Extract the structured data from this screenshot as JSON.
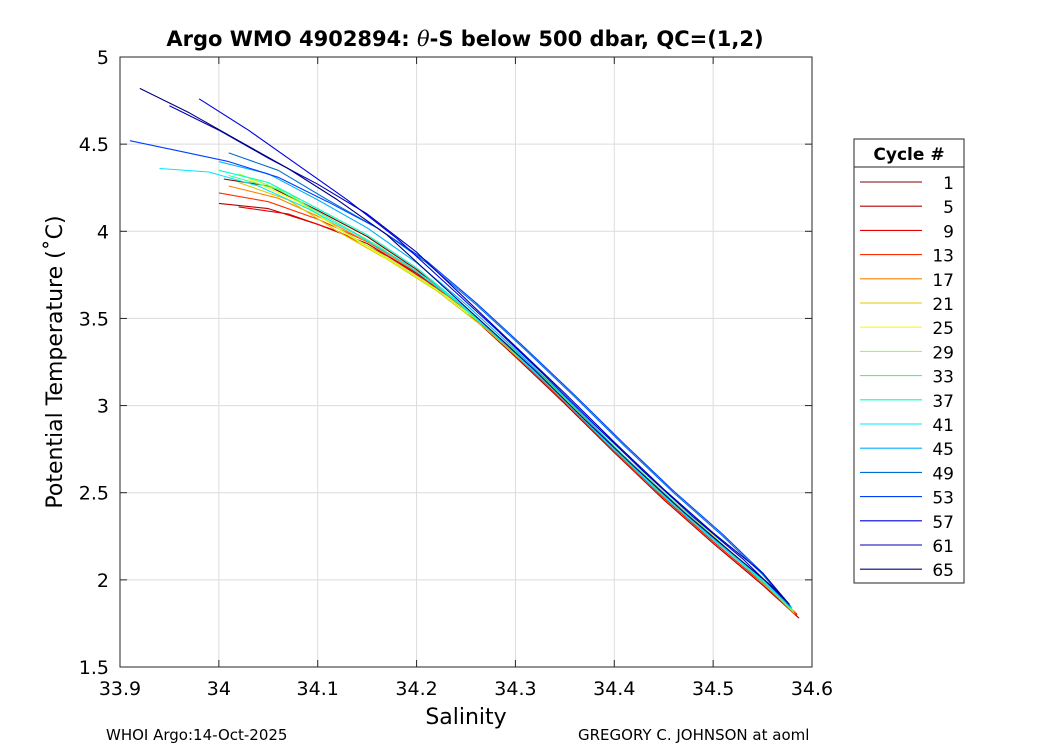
{
  "chart_data": {
    "type": "line",
    "title_prefix": "Argo WMO 4902894: ",
    "title_theta": "θ",
    "title_suffix": "-S below 500 dbar,  QC=(1,2)",
    "xlabel": "Salinity",
    "ylabel": "Potential Temperature (˚C)",
    "xlim": [
      33.9,
      34.6
    ],
    "ylim": [
      1.5,
      5
    ],
    "xticks": [
      33.9,
      34.0,
      34.1,
      34.2,
      34.3,
      34.4,
      34.5,
      34.6
    ],
    "xtick_labels": [
      "33.9",
      "34",
      "34.1",
      "34.2",
      "34.3",
      "34.4",
      "34.5",
      "34.6"
    ],
    "yticks": [
      1.5,
      2,
      2.5,
      3,
      3.5,
      4,
      4.5,
      5
    ],
    "ytick_labels": [
      "1.5",
      "2",
      "2.5",
      "3",
      "3.5",
      "4",
      "4.5",
      "5"
    ],
    "grid": true,
    "legend_title": "Cycle #",
    "legend_position": "outside-right",
    "legend": [
      {
        "label": "1",
        "color": "#800000"
      },
      {
        "label": "5",
        "color": "#b40000"
      },
      {
        "label": "9",
        "color": "#e80000"
      },
      {
        "label": "13",
        "color": "#ff3000"
      },
      {
        "label": "17",
        "color": "#ff8000"
      },
      {
        "label": "21",
        "color": "#e0c800"
      },
      {
        "label": "25",
        "color": "#ffff00"
      },
      {
        "label": "29",
        "color": "#a0ff40"
      },
      {
        "label": "33",
        "color": "#40ff80"
      },
      {
        "label": "37",
        "color": "#00ffc0"
      },
      {
        "label": "41",
        "color": "#00e8ff"
      },
      {
        "label": "45",
        "color": "#00b0ff"
      },
      {
        "label": "49",
        "color": "#0070d0"
      },
      {
        "label": "53",
        "color": "#0040ff"
      },
      {
        "label": "57",
        "color": "#0000e0"
      },
      {
        "label": "61",
        "color": "#0000b0"
      },
      {
        "label": "65",
        "color": "#000080"
      }
    ],
    "series": [
      {
        "name": "1",
        "x": [
          34.005,
          34.05,
          34.1,
          34.15,
          34.2,
          34.25,
          34.3,
          34.35,
          34.4,
          34.45,
          34.5,
          34.55,
          34.585
        ],
        "y": [
          4.3,
          4.26,
          4.12,
          3.97,
          3.78,
          3.55,
          3.29,
          3.02,
          2.74,
          2.47,
          2.22,
          1.98,
          1.79
        ]
      },
      {
        "name": "5",
        "x": [
          34.0,
          34.05,
          34.1,
          34.15,
          34.2,
          34.25,
          34.3,
          34.35,
          34.4,
          34.45,
          34.5,
          34.55,
          34.587
        ],
        "y": [
          4.16,
          4.13,
          4.04,
          3.93,
          3.76,
          3.54,
          3.28,
          3.01,
          2.73,
          2.46,
          2.21,
          1.97,
          1.78
        ]
      },
      {
        "name": "9",
        "x": [
          34.02,
          34.07,
          34.12,
          34.17,
          34.22,
          34.27,
          34.32,
          34.37,
          34.42,
          34.47,
          34.52,
          34.56,
          34.585
        ],
        "y": [
          4.14,
          4.1,
          4.0,
          3.86,
          3.68,
          3.45,
          3.2,
          2.93,
          2.65,
          2.39,
          2.14,
          1.94,
          1.8
        ]
      },
      {
        "name": "13",
        "x": [
          34.0,
          34.05,
          34.1,
          34.15,
          34.2,
          34.25,
          34.3,
          34.35,
          34.4,
          34.45,
          34.5,
          34.55,
          34.583
        ],
        "y": [
          4.22,
          4.17,
          4.07,
          3.94,
          3.77,
          3.55,
          3.29,
          3.02,
          2.74,
          2.47,
          2.22,
          1.98,
          1.8
        ]
      },
      {
        "name": "17",
        "x": [
          34.01,
          34.06,
          34.11,
          34.16,
          34.21,
          34.26,
          34.31,
          34.36,
          34.41,
          34.46,
          34.51,
          34.55,
          34.584
        ],
        "y": [
          4.26,
          4.19,
          4.06,
          3.91,
          3.73,
          3.51,
          3.26,
          2.99,
          2.71,
          2.45,
          2.2,
          1.98,
          1.81
        ]
      },
      {
        "name": "21",
        "x": [
          34.02,
          34.07,
          34.12,
          34.17,
          34.22,
          34.27,
          34.32,
          34.37,
          34.42,
          34.47,
          34.52,
          34.56,
          34.582
        ],
        "y": [
          4.28,
          4.18,
          4.0,
          3.84,
          3.66,
          3.44,
          3.19,
          2.92,
          2.64,
          2.38,
          2.14,
          1.94,
          1.81
        ]
      },
      {
        "name": "25",
        "x": [
          34.03,
          34.08,
          34.13,
          34.18,
          34.23,
          34.28,
          34.33,
          34.38,
          34.43,
          34.48,
          34.52,
          34.56,
          34.581
        ],
        "y": [
          4.3,
          4.17,
          3.98,
          3.81,
          3.63,
          3.41,
          3.16,
          2.89,
          2.62,
          2.36,
          2.15,
          1.95,
          1.82
        ]
      },
      {
        "name": "29",
        "x": [
          34.02,
          34.07,
          34.12,
          34.17,
          34.22,
          34.27,
          34.32,
          34.37,
          34.42,
          34.47,
          34.52,
          34.56,
          34.581
        ],
        "y": [
          4.33,
          4.22,
          4.02,
          3.85,
          3.67,
          3.45,
          3.2,
          2.93,
          2.65,
          2.39,
          2.15,
          1.95,
          1.82
        ]
      },
      {
        "name": "33",
        "x": [
          34.01,
          34.06,
          34.11,
          34.16,
          34.21,
          34.26,
          34.31,
          34.36,
          34.41,
          34.46,
          34.51,
          34.55,
          34.58
        ],
        "y": [
          4.32,
          4.24,
          4.08,
          3.92,
          3.73,
          3.51,
          3.26,
          2.99,
          2.71,
          2.45,
          2.2,
          1.99,
          1.82
        ]
      },
      {
        "name": "37",
        "x": [
          34.0,
          34.05,
          34.1,
          34.15,
          34.2,
          34.25,
          34.3,
          34.35,
          34.4,
          34.45,
          34.5,
          34.55,
          34.58
        ],
        "y": [
          4.35,
          4.28,
          4.13,
          3.98,
          3.79,
          3.56,
          3.3,
          3.03,
          2.75,
          2.48,
          2.23,
          2.0,
          1.83
        ]
      },
      {
        "name": "41",
        "x": [
          33.94,
          33.99,
          34.04,
          34.09,
          34.14,
          34.19,
          34.24,
          34.29,
          34.34,
          34.39,
          34.44,
          34.49,
          34.54,
          34.58
        ],
        "y": [
          4.36,
          4.34,
          4.26,
          4.13,
          3.98,
          3.81,
          3.6,
          3.35,
          3.08,
          2.8,
          2.53,
          2.28,
          2.04,
          1.84
        ]
      },
      {
        "name": "45",
        "x": [
          34.0,
          34.05,
          34.1,
          34.15,
          34.2,
          34.25,
          34.3,
          34.35,
          34.4,
          34.45,
          34.5,
          34.55,
          34.579
        ],
        "y": [
          4.4,
          4.33,
          4.18,
          4.02,
          3.82,
          3.58,
          3.32,
          3.05,
          2.76,
          2.49,
          2.24,
          2.01,
          1.84
        ]
      },
      {
        "name": "49",
        "x": [
          34.01,
          34.06,
          34.11,
          34.16,
          34.21,
          34.26,
          34.31,
          34.36,
          34.41,
          34.46,
          34.51,
          34.55,
          34.578
        ],
        "y": [
          4.45,
          4.35,
          4.18,
          4.02,
          3.82,
          3.58,
          3.32,
          3.05,
          2.77,
          2.5,
          2.25,
          2.03,
          1.85
        ]
      },
      {
        "name": "53",
        "x": [
          33.91,
          33.96,
          34.01,
          34.06,
          34.11,
          34.16,
          34.21,
          34.26,
          34.31,
          34.36,
          34.41,
          34.46,
          34.51,
          34.55,
          34.578
        ],
        "y": [
          4.52,
          4.46,
          4.4,
          4.31,
          4.17,
          4.02,
          3.83,
          3.59,
          3.33,
          3.06,
          2.78,
          2.51,
          2.26,
          2.04,
          1.85
        ]
      },
      {
        "name": "57",
        "x": [
          33.98,
          34.03,
          34.08,
          34.13,
          34.18,
          34.23,
          34.28,
          34.33,
          34.38,
          34.43,
          34.48,
          34.53,
          34.577
        ],
        "y": [
          4.76,
          4.58,
          4.38,
          4.18,
          3.96,
          3.7,
          3.44,
          3.17,
          2.89,
          2.62,
          2.36,
          2.12,
          1.86
        ]
      },
      {
        "name": "61",
        "x": [
          33.95,
          34.0,
          34.05,
          34.1,
          34.15,
          34.2,
          34.25,
          34.3,
          34.35,
          34.4,
          34.45,
          34.5,
          34.55,
          34.577
        ],
        "y": [
          4.72,
          4.58,
          4.42,
          4.27,
          4.1,
          3.88,
          3.61,
          3.34,
          3.07,
          2.79,
          2.52,
          2.27,
          2.04,
          1.86
        ]
      },
      {
        "name": "65",
        "x": [
          33.92,
          33.97,
          34.02,
          34.07,
          34.12,
          34.17,
          34.22,
          34.27,
          34.32,
          34.37,
          34.42,
          34.47,
          34.52,
          34.56,
          34.577
        ],
        "y": [
          4.82,
          4.68,
          4.52,
          4.36,
          4.18,
          3.98,
          3.72,
          3.46,
          3.2,
          2.92,
          2.65,
          2.39,
          2.15,
          1.96,
          1.86
        ]
      }
    ]
  },
  "footer": {
    "left": "WHOI Argo:14-Oct-2025",
    "right": "GREGORY C. JOHNSON at aoml"
  }
}
